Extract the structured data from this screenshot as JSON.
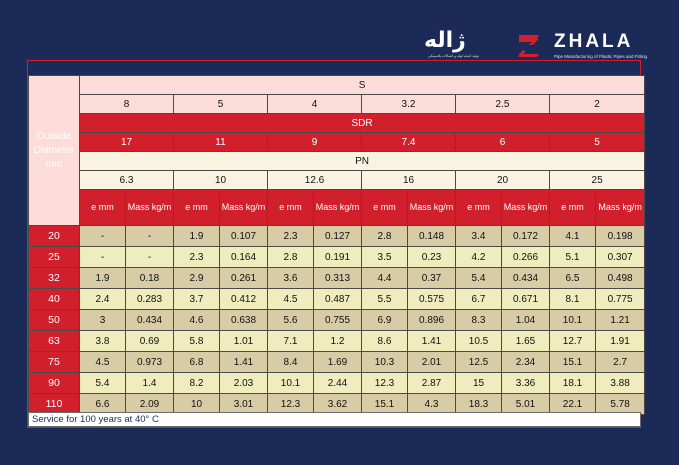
{
  "brand": {
    "name_fa": "ژاله",
    "tagline_fa": "تولید کننده لوله و اتصالات پلاستیکی",
    "name_en": "ZHALA",
    "tagline_en": "Pipe Manufacturing of Plastic Pipes and Fitting",
    "accent_color": "#d21f2c",
    "background_color": "#1b2a57"
  },
  "table": {
    "outside_diameter_label": "Outside Diameter mm",
    "s_label": "S",
    "s_values": [
      "8",
      "5",
      "4",
      "3.2",
      "2.5",
      "2"
    ],
    "sdr_label": "SDR",
    "sdr_values": [
      "17",
      "11",
      "9",
      "7.4",
      "6",
      "5"
    ],
    "pn_label": "PN",
    "pn_values": [
      "6.3",
      "10",
      "12.6",
      "16",
      "20",
      "25"
    ],
    "e_label": "e mm",
    "mass_label": "Mass kg/m",
    "rows": [
      {
        "diameter": "20",
        "cells": [
          "-",
          "-",
          "1.9",
          "0.107",
          "2.3",
          "0.127",
          "2.8",
          "0.148",
          "3.4",
          "0.172",
          "4.1",
          "0.198"
        ]
      },
      {
        "diameter": "25",
        "cells": [
          "-",
          "-",
          "2.3",
          "0.164",
          "2.8",
          "0.191",
          "3.5",
          "0.23",
          "4.2",
          "0.266",
          "5.1",
          "0.307"
        ]
      },
      {
        "diameter": "32",
        "cells": [
          "1.9",
          "0.18",
          "2.9",
          "0.261",
          "3.6",
          "0.313",
          "4.4",
          "0.37",
          "5.4",
          "0.434",
          "6.5",
          "0.498"
        ]
      },
      {
        "diameter": "40",
        "cells": [
          "2.4",
          "0.283",
          "3.7",
          "0.412",
          "4.5",
          "0.487",
          "5.5",
          "0.575",
          "6.7",
          "0.671",
          "8.1",
          "0.775"
        ]
      },
      {
        "diameter": "50",
        "cells": [
          "3",
          "0.434",
          "4.6",
          "0.638",
          "5.6",
          "0.755",
          "6.9",
          "0.896",
          "8.3",
          "1.04",
          "10.1",
          "1.21"
        ]
      },
      {
        "diameter": "63",
        "cells": [
          "3.8",
          "0.69",
          "5.8",
          "1.01",
          "7.1",
          "1.2",
          "8.6",
          "1.41",
          "10.5",
          "1.65",
          "12.7",
          "1.91"
        ]
      },
      {
        "diameter": "75",
        "cells": [
          "4.5",
          "0.973",
          "6.8",
          "1.41",
          "8.4",
          "1.69",
          "10.3",
          "2.01",
          "12.5",
          "2.34",
          "15.1",
          "2.7"
        ]
      },
      {
        "diameter": "90",
        "cells": [
          "5.4",
          "1.4",
          "8.2",
          "2.03",
          "10.1",
          "2.44",
          "12.3",
          "2.87",
          "15",
          "3.36",
          "18.1",
          "3.88"
        ]
      },
      {
        "diameter": "110",
        "cells": [
          "6.6",
          "2.09",
          "10",
          "3.01",
          "12.3",
          "3.62",
          "15.1",
          "4.3",
          "18.3",
          "5.01",
          "22.1",
          "5.78"
        ]
      }
    ]
  },
  "footnote": "Service for 100 years at 40° C"
}
